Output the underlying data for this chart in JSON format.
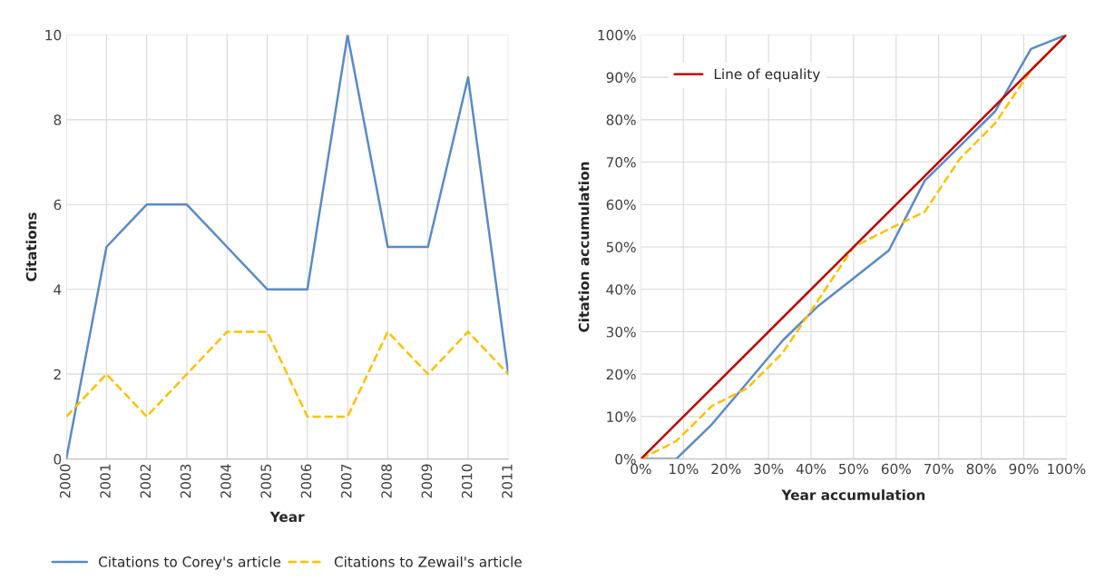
{
  "chart_data": [
    {
      "type": "line",
      "xlabel": "Year",
      "ylabel": "Citations",
      "categories": [
        "2000",
        "2001",
        "2002",
        "2003",
        "2004",
        "2005",
        "2006",
        "2007",
        "2008",
        "2009",
        "2010",
        "2011"
      ],
      "ylim": [
        0,
        10
      ],
      "yticks": [
        0,
        2,
        4,
        6,
        8,
        10
      ],
      "grid": true,
      "legend": "bottom",
      "series": [
        {
          "name": "Citations to Corey's article",
          "color": "#5b8ac6",
          "line_style": "solid",
          "values": [
            0,
            5,
            6,
            6,
            5,
            4,
            4,
            10,
            5,
            5,
            9,
            2
          ]
        },
        {
          "name": "Citations to Zewail's article",
          "color": "#ffc000",
          "line_style": "dashed",
          "values": [
            1,
            2,
            1,
            2,
            3,
            3,
            1,
            1,
            3,
            2,
            3,
            2
          ]
        }
      ]
    },
    {
      "type": "line",
      "xlabel": "Year accumulation",
      "ylabel": "Citation accumulation",
      "xlim": [
        0,
        100
      ],
      "ylim": [
        0,
        100
      ],
      "xticks": [
        {
          "value": 0,
          "label": "0%"
        },
        {
          "value": 10,
          "label": "10%"
        },
        {
          "value": 20,
          "label": "20%"
        },
        {
          "value": 30,
          "label": "30%"
        },
        {
          "value": 40,
          "label": "40%"
        },
        {
          "value": 50,
          "label": "50%"
        },
        {
          "value": 60,
          "label": "60%"
        },
        {
          "value": 70,
          "label": "70%"
        },
        {
          "value": 80,
          "label": "80%"
        },
        {
          "value": 90,
          "label": "90%"
        },
        {
          "value": 100,
          "label": "100%"
        }
      ],
      "yticks": [
        {
          "value": 0,
          "label": "0%"
        },
        {
          "value": 10,
          "label": "10%"
        },
        {
          "value": 20,
          "label": "20%"
        },
        {
          "value": 30,
          "label": "30%"
        },
        {
          "value": 40,
          "label": "40%"
        },
        {
          "value": 50,
          "label": "50%"
        },
        {
          "value": 60,
          "label": "60%"
        },
        {
          "value": 70,
          "label": "70%"
        },
        {
          "value": 80,
          "label": "80%"
        },
        {
          "value": 90,
          "label": "90%"
        },
        {
          "value": 100,
          "label": "100%"
        }
      ],
      "grid": true,
      "legend": "top left",
      "series": [
        {
          "color": "#5b8ac6",
          "line_style": "solid",
          "x": [
            0,
            8.3,
            16.7,
            25,
            33.3,
            41.7,
            50,
            58.3,
            66.7,
            75,
            83.3,
            91.7,
            100
          ],
          "values": [
            0,
            0,
            8.2,
            18,
            27.9,
            36.1,
            42.6,
            49.2,
            65.6,
            73.8,
            82,
            96.7,
            100
          ]
        },
        {
          "color": "#ffc000",
          "line_style": "dashed",
          "x": [
            0,
            8.3,
            16.7,
            25,
            33.3,
            41.7,
            50,
            58.3,
            66.7,
            75,
            83.3,
            91.7,
            100
          ],
          "values": [
            0,
            4.2,
            12.5,
            16.7,
            25,
            37.5,
            50,
            54.2,
            58.3,
            70.8,
            79.2,
            91.7,
            100
          ]
        },
        {
          "name": "Line of equality",
          "color": "#c00000",
          "line_style": "solid",
          "x": [
            0,
            100
          ],
          "values": [
            0,
            100
          ]
        }
      ]
    }
  ]
}
